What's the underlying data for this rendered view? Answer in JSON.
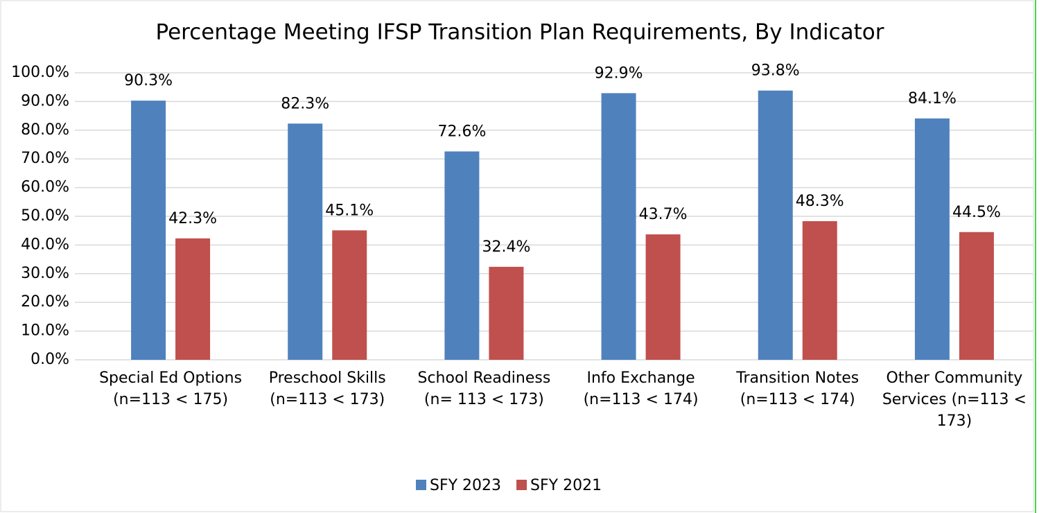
{
  "chart_data": {
    "type": "bar",
    "title": "Percentage Meeting IFSP Transition Plan Requirements, By Indicator",
    "categories": [
      "Special Ed Options (n=113 < 175)",
      "Preschool Skills (n=113 < 173)",
      "School Readiness (n= 113 < 173)",
      "Info Exchange (n=113 < 174)",
      "Transition Notes (n=113 < 174)",
      "Other Community Services (n=113 < 173)"
    ],
    "series": [
      {
        "name": "SFY 2023",
        "color": "#4f81bd",
        "values": [
          90.3,
          82.3,
          72.6,
          92.9,
          93.8,
          84.1
        ],
        "value_labels": [
          "90.3%",
          "82.3%",
          "72.6%",
          "92.9%",
          "93.8%",
          "84.1%"
        ]
      },
      {
        "name": "SFY 2021",
        "color": "#c0504d",
        "values": [
          42.3,
          45.1,
          32.4,
          43.7,
          48.3,
          44.5
        ],
        "value_labels": [
          "42.3%",
          "45.1%",
          "32.4%",
          "43.7%",
          "48.3%",
          "44.5%"
        ]
      }
    ],
    "ylim": [
      0,
      100
    ],
    "yticks": [
      {
        "value": 0,
        "label": "0.0%"
      },
      {
        "value": 10,
        "label": "10.0%"
      },
      {
        "value": 20,
        "label": "20.0%"
      },
      {
        "value": 30,
        "label": "30.0%"
      },
      {
        "value": 40,
        "label": "40.0%"
      },
      {
        "value": 50,
        "label": "50.0%"
      },
      {
        "value": 60,
        "label": "60.0%"
      },
      {
        "value": 70,
        "label": "70.0%"
      },
      {
        "value": 80,
        "label": "80.0%"
      },
      {
        "value": 90,
        "label": "90.0%"
      },
      {
        "value": 100,
        "label": "100.0%"
      }
    ],
    "grid": true,
    "legend": "bottom"
  }
}
